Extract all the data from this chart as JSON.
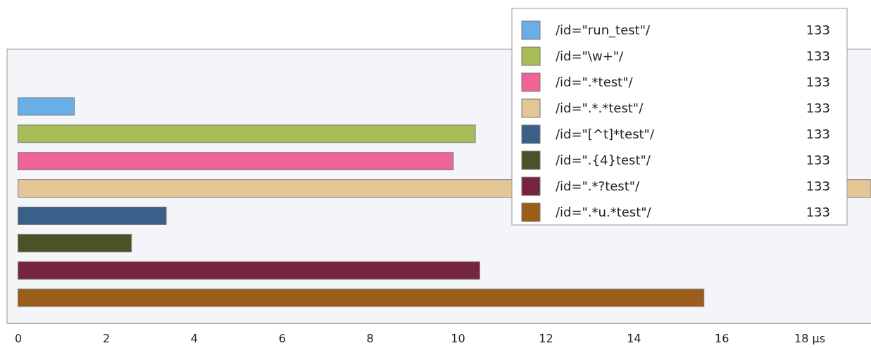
{
  "chart_data": {
    "type": "bar",
    "orientation": "horizontal",
    "stacked": true,
    "categories": [
      null,
      null,
      null,
      null,
      null,
      null,
      null,
      null
    ],
    "series": [
      {
        "name": "/id=\"run_test\"/",
        "color": "#6aaee8",
        "values": [
          1.28,
          null,
          null,
          null,
          null,
          null,
          null,
          null
        ]
      },
      {
        "name": "/id=\"\\w+\"/",
        "color": "#a8bc58",
        "values": [
          null,
          10.4,
          null,
          null,
          null,
          null,
          null,
          null
        ]
      },
      {
        "name": "/id=\".*test\"/",
        "color": "#ee6494",
        "values": [
          null,
          null,
          9.9,
          null,
          null,
          null,
          null,
          null
        ]
      },
      {
        "name": "/id=\".*.*test\"/",
        "color": "#e4c696",
        "values": [
          null,
          null,
          null,
          19.4,
          null,
          null,
          null,
          null
        ]
      },
      {
        "name": "/id=\"[^t]*test\"/",
        "color": "#3a5f88",
        "values": [
          null,
          null,
          null,
          null,
          3.37,
          null,
          null,
          null
        ]
      },
      {
        "name": "/id=\".{4}test\"/",
        "color": "#4a5228",
        "values": [
          null,
          null,
          null,
          null,
          null,
          2.58,
          null,
          null
        ]
      },
      {
        "name": "/id=\".*?test\"/",
        "color": "#76243f",
        "values": [
          null,
          null,
          null,
          null,
          null,
          null,
          10.5,
          null
        ]
      },
      {
        "name": "/id=\".*u.*test\"/",
        "color": "#9a5e1a",
        "values": [
          null,
          null,
          null,
          null,
          null,
          null,
          null,
          15.6
        ]
      }
    ],
    "xlim": [
      -0.25,
      19.4
    ],
    "xticks": [
      0,
      2,
      4,
      6,
      8,
      10,
      12,
      14,
      16,
      {
        "value": 18,
        "label": "18 μs"
      }
    ],
    "legend": "top right",
    "grid": false,
    "annotations": [
      "133",
      "133",
      "133",
      "133",
      "133",
      "133",
      "133",
      "133"
    ]
  }
}
